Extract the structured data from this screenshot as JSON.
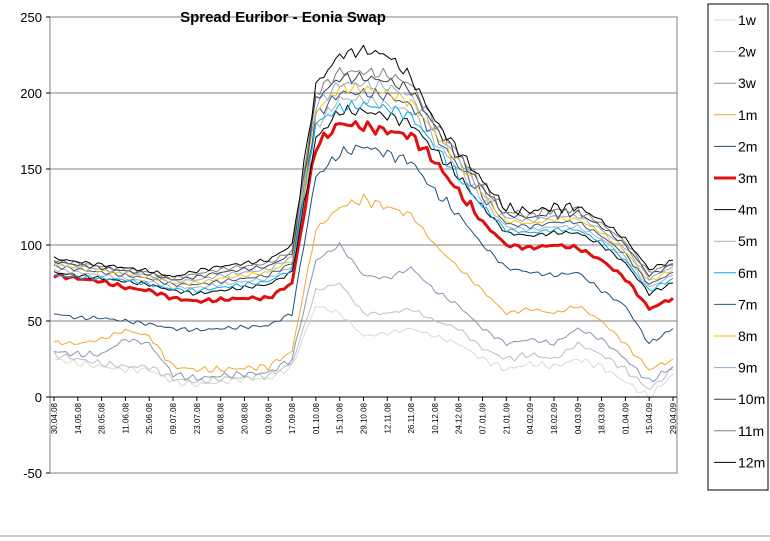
{
  "chart_data": {
    "type": "line",
    "title": "Spread Euribor - Eonia Swap",
    "xlabel": "",
    "ylabel": "",
    "ylim": [
      -50,
      250
    ],
    "yticks": [
      -50,
      0,
      50,
      100,
      150,
      200,
      250
    ],
    "categories": [
      "30.04.08",
      "14.05.08",
      "28.05.08",
      "11.06.08",
      "25.06.08",
      "09.07.08",
      "23.07.08",
      "06.08.08",
      "20.08.08",
      "03.09.08",
      "17.09.08",
      "01.10.08",
      "15.10.08",
      "29.10.08",
      "12.11.08",
      "26.11.08",
      "10.12.08",
      "24.12.08",
      "07.01.09",
      "21.01.09",
      "04.02.09",
      "18.02.09",
      "04.03.09",
      "18.03.09",
      "01.04.09",
      "15.04.09",
      "29.04.09"
    ],
    "grid": "horizontal",
    "legend": "right",
    "series": [
      {
        "name": "1w",
        "color": "#D9D9D9",
        "width": 1,
        "values": [
          25,
          22,
          20,
          18,
          18,
          10,
          8,
          10,
          12,
          12,
          20,
          60,
          55,
          40,
          42,
          45,
          40,
          35,
          25,
          18,
          22,
          20,
          25,
          20,
          10,
          0,
          15
        ]
      },
      {
        "name": "2w",
        "color": "#BFBFBF",
        "width": 1,
        "values": [
          28,
          25,
          22,
          20,
          20,
          12,
          10,
          12,
          13,
          14,
          22,
          70,
          75,
          55,
          55,
          58,
          50,
          45,
          32,
          25,
          28,
          25,
          35,
          28,
          18,
          5,
          18
        ]
      },
      {
        "name": "3w",
        "color": "#8497B0",
        "width": 1,
        "values": [
          30,
          28,
          28,
          38,
          35,
          15,
          12,
          14,
          15,
          16,
          25,
          90,
          100,
          80,
          78,
          85,
          70,
          60,
          45,
          35,
          38,
          35,
          45,
          38,
          25,
          10,
          20
        ]
      },
      {
        "name": "1m",
        "color": "#F0A830",
        "width": 1,
        "values": [
          36,
          35,
          38,
          44,
          40,
          20,
          18,
          18,
          19,
          20,
          30,
          110,
          125,
          130,
          125,
          120,
          100,
          85,
          70,
          55,
          58,
          55,
          60,
          50,
          35,
          18,
          25
        ]
      },
      {
        "name": "2m",
        "color": "#1F4E79",
        "width": 1,
        "values": [
          55,
          52,
          52,
          50,
          48,
          45,
          44,
          45,
          46,
          47,
          55,
          145,
          160,
          165,
          160,
          155,
          135,
          120,
          100,
          85,
          82,
          80,
          82,
          70,
          60,
          35,
          45
        ]
      },
      {
        "name": "3m",
        "color": "#E01010",
        "width": 3,
        "values": [
          80,
          78,
          76,
          72,
          70,
          65,
          63,
          64,
          65,
          65,
          75,
          165,
          180,
          178,
          175,
          172,
          155,
          135,
          115,
          100,
          98,
          100,
          98,
          90,
          78,
          58,
          65
        ]
      },
      {
        "name": "4m",
        "color": "#000000",
        "width": 1,
        "values": [
          82,
          80,
          78,
          76,
          74,
          70,
          68,
          70,
          72,
          74,
          82,
          170,
          188,
          188,
          185,
          180,
          162,
          145,
          125,
          108,
          106,
          108,
          108,
          100,
          88,
          68,
          75
        ]
      },
      {
        "name": "5m",
        "color": "#B0B0B0",
        "width": 1,
        "values": [
          84,
          82,
          80,
          78,
          76,
          72,
          72,
          74,
          76,
          78,
          86,
          178,
          196,
          196,
          192,
          188,
          168,
          150,
          130,
          112,
          110,
          112,
          112,
          104,
          92,
          72,
          80
        ]
      },
      {
        "name": "6m",
        "color": "#00B0F0",
        "width": 1,
        "values": [
          80,
          79,
          78,
          77,
          74,
          71,
          70,
          72,
          74,
          76,
          84,
          180,
          190,
          192,
          190,
          185,
          165,
          145,
          125,
          110,
          108,
          110,
          110,
          102,
          90,
          70,
          78
        ]
      },
      {
        "name": "7m",
        "color": "#2F5496",
        "width": 1,
        "values": [
          86,
          84,
          82,
          80,
          78,
          74,
          74,
          76,
          78,
          80,
          88,
          185,
          200,
          200,
          198,
          192,
          172,
          152,
          132,
          114,
          112,
          115,
          115,
          106,
          94,
          74,
          82
        ]
      },
      {
        "name": "8m",
        "color": "#FFC000",
        "width": 1,
        "values": [
          87,
          85,
          83,
          81,
          79,
          75,
          75,
          78,
          80,
          82,
          90,
          188,
          203,
          203,
          200,
          194,
          174,
          154,
          134,
          116,
          114,
          117,
          117,
          108,
          96,
          76,
          84
        ]
      },
      {
        "name": "9m",
        "color": "#8EA9DB",
        "width": 1,
        "values": [
          88,
          86,
          84,
          82,
          80,
          76,
          77,
          80,
          82,
          84,
          92,
          192,
          206,
          206,
          204,
          198,
          176,
          156,
          136,
          118,
          116,
          119,
          119,
          110,
          98,
          78,
          86
        ]
      },
      {
        "name": "10m",
        "color": "#404040",
        "width": 1,
        "values": [
          89,
          87,
          85,
          83,
          81,
          77,
          79,
          82,
          84,
          86,
          94,
          196,
          210,
          210,
          208,
          202,
          178,
          158,
          138,
          120,
          118,
          121,
          121,
          112,
          100,
          80,
          87
        ]
      },
      {
        "name": "11m",
        "color": "#808080",
        "width": 1,
        "values": [
          90,
          88,
          86,
          84,
          82,
          78,
          81,
          84,
          86,
          88,
          96,
          200,
          214,
          214,
          212,
          206,
          180,
          160,
          140,
          122,
          120,
          123,
          123,
          114,
          102,
          82,
          88
        ]
      },
      {
        "name": "12m",
        "color": "#000000",
        "width": 1,
        "values": [
          91,
          89,
          87,
          85,
          83,
          79,
          83,
          86,
          88,
          90,
          100,
          205,
          225,
          228,
          225,
          210,
          182,
          162,
          142,
          124,
          122,
          125,
          125,
          116,
          104,
          84,
          90
        ]
      }
    ]
  }
}
